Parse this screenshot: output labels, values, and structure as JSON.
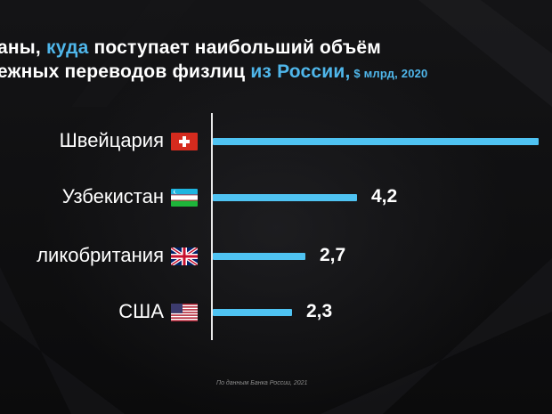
{
  "title": {
    "line1_a": "раны, ",
    "line1_accent": "куда",
    "line1_b": " поступает наибольший объём",
    "line2_a": "нежных переводов физлиц ",
    "line2_accent": "из России,",
    "line2_unit": " $ млрд, 2020"
  },
  "source": "По данным Банка России, 2021",
  "colors": {
    "accent": "#4fb6ea",
    "bar": "#4fc3f2",
    "background": "#0e0e10"
  },
  "chart_data": {
    "type": "bar",
    "orientation": "horizontal",
    "categories": [
      "Швейцария",
      "Узбекистан",
      "ликобритания",
      "США"
    ],
    "flags": [
      "switzerland-flag-icon",
      "uzbekistan-flag-icon",
      "uk-flag-icon",
      "usa-flag-icon"
    ],
    "values": [
      9.5,
      4.2,
      2.7,
      2.3
    ],
    "value_labels": [
      "",
      "4,2",
      "2,7",
      "2,3"
    ],
    "xlabel": "",
    "ylabel": "",
    "xlim": [
      0,
      9.5
    ]
  }
}
